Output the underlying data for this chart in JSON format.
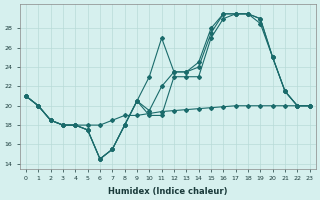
{
  "xlabel": "Humidex (Indice chaleur)",
  "background_color": "#d6f0ee",
  "grid_color": "#b8dbd8",
  "line_color": "#1a6b6b",
  "xlim": [
    -0.5,
    23.5
  ],
  "ylim": [
    13.5,
    30.5
  ],
  "yticks": [
    14,
    16,
    18,
    20,
    22,
    24,
    26,
    28
  ],
  "xticks": [
    0,
    1,
    2,
    3,
    4,
    5,
    6,
    7,
    8,
    9,
    10,
    11,
    12,
    13,
    14,
    15,
    16,
    17,
    18,
    19,
    20,
    21,
    22,
    23
  ],
  "series1_x": [
    0,
    1,
    2,
    3,
    4,
    5,
    6,
    7,
    8,
    9,
    10,
    11,
    12,
    13,
    14,
    15,
    16,
    17,
    18,
    19,
    20,
    21,
    22,
    23
  ],
  "series1_y": [
    21,
    20,
    18.5,
    18,
    18,
    17.5,
    14.5,
    15.5,
    18,
    20.5,
    19,
    19,
    23,
    23,
    23,
    27,
    29,
    29.5,
    29.5,
    28.5,
    25,
    21.5,
    20,
    20
  ],
  "series2_x": [
    0,
    1,
    2,
    3,
    4,
    5,
    6,
    7,
    8,
    9,
    10,
    11,
    12,
    13,
    14,
    15,
    16,
    17,
    18,
    19,
    20,
    21,
    22,
    23
  ],
  "series2_y": [
    21,
    20,
    18.5,
    18,
    18,
    17.5,
    14.5,
    15.5,
    18,
    20.5,
    19.5,
    22,
    23.5,
    23.5,
    24,
    27.5,
    29.5,
    29.5,
    29.5,
    29,
    25,
    21.5,
    20,
    20
  ],
  "series3_x": [
    0,
    1,
    2,
    3,
    4,
    5,
    6,
    7,
    8,
    9,
    10,
    11,
    12,
    13,
    14,
    15,
    16,
    17,
    18,
    19,
    20,
    21,
    22,
    23
  ],
  "series3_y": [
    21,
    20,
    18.5,
    18,
    18,
    17.5,
    14.5,
    15.5,
    18,
    20.5,
    23,
    27,
    23.5,
    23.5,
    24.5,
    28,
    29.5,
    29.5,
    29.5,
    29,
    25,
    21.5,
    20,
    20
  ],
  "series4_x": [
    0,
    1,
    2,
    3,
    4,
    5,
    6,
    7,
    8,
    9,
    10,
    11,
    12,
    13,
    14,
    15,
    16,
    17,
    18,
    19,
    20,
    21,
    22,
    23
  ],
  "series4_y": [
    21,
    20,
    18.5,
    18,
    18,
    18,
    18,
    18.5,
    19,
    19,
    19.2,
    19.4,
    19.5,
    19.6,
    19.7,
    19.8,
    19.9,
    20,
    20,
    20,
    20,
    20,
    20,
    20
  ]
}
